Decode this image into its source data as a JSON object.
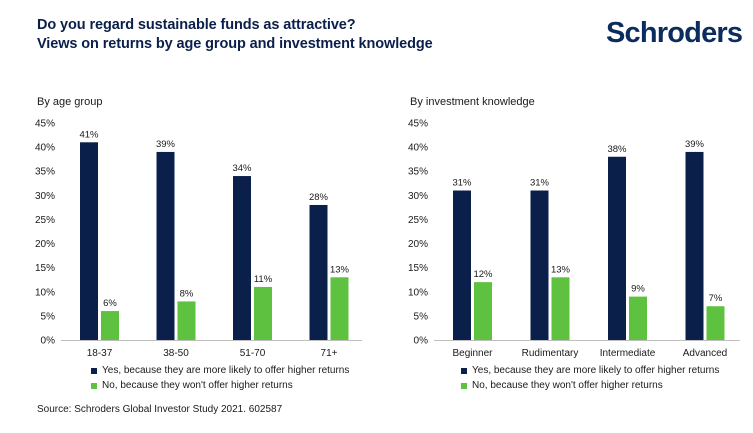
{
  "header": {
    "title_line1": "Do you regard sustainable funds as attractive?",
    "title_line2": "Views on returns by age group and investment knowledge",
    "logo_text": "Schroders"
  },
  "colors": {
    "yes": "#0b1f4b",
    "no": "#5ec13f",
    "logo": "#0b2c5e"
  },
  "legend": {
    "yes": "Yes, because they are more likely to offer higher returns",
    "no": "No, because they won't offer higher returns"
  },
  "source": "Source: Schroders Global Investor Study 2021. 602587",
  "chart_data": [
    {
      "type": "bar",
      "title": "By age group",
      "categories": [
        "18-37",
        "38-50",
        "51-70",
        "71+"
      ],
      "series": [
        {
          "name": "Yes, because they are more likely to offer higher returns",
          "values": [
            41,
            39,
            34,
            28
          ]
        },
        {
          "name": "No, because they won't offer higher returns",
          "values": [
            6,
            8,
            11,
            13
          ]
        }
      ],
      "ylim": [
        0,
        45
      ],
      "yticks": [
        0,
        5,
        10,
        15,
        20,
        25,
        30,
        35,
        40,
        45
      ],
      "ytick_suffix": "%",
      "grid": false,
      "legend_position": "bottom"
    },
    {
      "type": "bar",
      "title": "By investment knowledge",
      "categories": [
        "Beginner",
        "Rudimentary",
        "Intermediate",
        "Advanced"
      ],
      "series": [
        {
          "name": "Yes, because they are more likely to offer higher returns",
          "values": [
            31,
            31,
            38,
            39
          ]
        },
        {
          "name": "No, because they won't offer higher returns",
          "values": [
            12,
            13,
            9,
            7
          ]
        }
      ],
      "ylim": [
        0,
        45
      ],
      "yticks": [
        0,
        5,
        10,
        15,
        20,
        25,
        30,
        35,
        40,
        45
      ],
      "ytick_suffix": "%",
      "grid": false,
      "legend_position": "bottom"
    }
  ]
}
